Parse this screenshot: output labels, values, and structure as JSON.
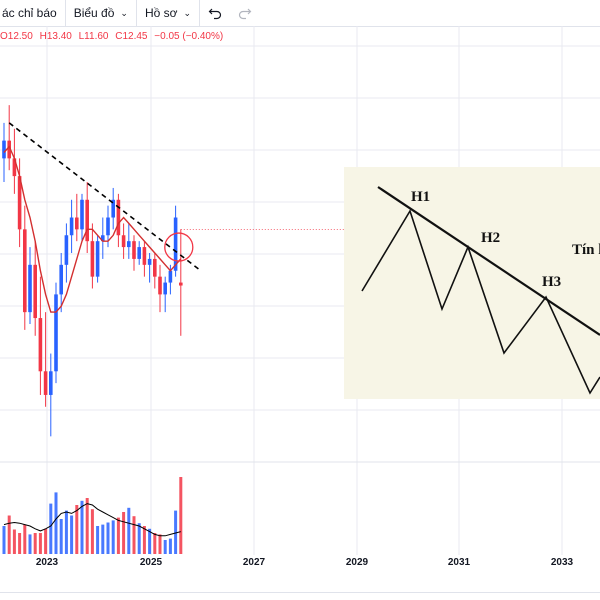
{
  "toolbar": {
    "indicators_label": "ác chỉ báo",
    "chart_type_label": "Biểu đồ",
    "profile_label": "Hồ sơ",
    "undo_icon": "undo-icon",
    "redo_icon": "redo-icon"
  },
  "ohlc": {
    "open": "O12.50",
    "high": "H13.40",
    "low": "L11.60",
    "close": "C12.45",
    "change": "−0.05 (−0.40%)"
  },
  "colors": {
    "up": "#2962ff",
    "down": "#f23645",
    "ma": "#d32f2f",
    "vol_ma": "#000000",
    "grid": "#e8eaf0",
    "callout_bg": "#f7f5e6"
  },
  "chart_data": {
    "type": "candlestick",
    "x_axis": [
      "2023",
      "2025",
      "2027",
      "2029",
      "2031",
      "2033"
    ],
    "price_range": [
      9.5,
      16.5
    ],
    "candles": [
      {
        "o": 14.6,
        "h": 15.2,
        "l": 14.2,
        "c": 14.9
      },
      {
        "o": 14.9,
        "h": 15.5,
        "l": 14.4,
        "c": 14.6
      },
      {
        "o": 14.6,
        "h": 15.1,
        "l": 14.0,
        "c": 14.3
      },
      {
        "o": 14.3,
        "h": 14.6,
        "l": 13.1,
        "c": 13.4
      },
      {
        "o": 13.4,
        "h": 13.8,
        "l": 11.7,
        "c": 12.0
      },
      {
        "o": 12.0,
        "h": 13.1,
        "l": 11.8,
        "c": 12.8
      },
      {
        "o": 12.8,
        "h": 13.2,
        "l": 11.6,
        "c": 11.9
      },
      {
        "o": 11.9,
        "h": 12.6,
        "l": 10.6,
        "c": 11.0
      },
      {
        "o": 11.0,
        "h": 12.0,
        "l": 10.4,
        "c": 10.6
      },
      {
        "o": 10.6,
        "h": 11.3,
        "l": 9.9,
        "c": 11.0
      },
      {
        "o": 11.0,
        "h": 12.5,
        "l": 10.8,
        "c": 12.3
      },
      {
        "o": 12.3,
        "h": 13.0,
        "l": 12.0,
        "c": 12.8
      },
      {
        "o": 12.8,
        "h": 13.5,
        "l": 12.5,
        "c": 13.3
      },
      {
        "o": 13.3,
        "h": 13.9,
        "l": 13.0,
        "c": 13.6
      },
      {
        "o": 13.6,
        "h": 14.0,
        "l": 13.2,
        "c": 13.4
      },
      {
        "o": 13.4,
        "h": 14.0,
        "l": 13.2,
        "c": 13.9
      },
      {
        "o": 13.9,
        "h": 14.2,
        "l": 13.0,
        "c": 13.2
      },
      {
        "o": 13.2,
        "h": 13.5,
        "l": 12.4,
        "c": 12.6
      },
      {
        "o": 12.6,
        "h": 13.3,
        "l": 12.5,
        "c": 13.2
      },
      {
        "o": 13.2,
        "h": 13.6,
        "l": 12.9,
        "c": 13.3
      },
      {
        "o": 13.3,
        "h": 13.8,
        "l": 13.1,
        "c": 13.6
      },
      {
        "o": 13.6,
        "h": 14.1,
        "l": 13.4,
        "c": 13.9
      },
      {
        "o": 13.9,
        "h": 14.0,
        "l": 13.1,
        "c": 13.3
      },
      {
        "o": 13.3,
        "h": 13.5,
        "l": 12.9,
        "c": 13.1
      },
      {
        "o": 13.1,
        "h": 13.5,
        "l": 12.9,
        "c": 13.2
      },
      {
        "o": 13.2,
        "h": 13.3,
        "l": 12.7,
        "c": 12.9
      },
      {
        "o": 12.9,
        "h": 13.2,
        "l": 12.8,
        "c": 13.1
      },
      {
        "o": 13.1,
        "h": 13.2,
        "l": 12.6,
        "c": 12.8
      },
      {
        "o": 12.8,
        "h": 13.0,
        "l": 12.5,
        "c": 12.9
      },
      {
        "o": 12.9,
        "h": 13.0,
        "l": 12.4,
        "c": 12.6
      },
      {
        "o": 12.6,
        "h": 12.8,
        "l": 12.0,
        "c": 12.3
      },
      {
        "o": 12.3,
        "h": 12.6,
        "l": 12.0,
        "c": 12.5
      },
      {
        "o": 12.5,
        "h": 12.8,
        "l": 12.3,
        "c": 12.7
      },
      {
        "o": 12.7,
        "h": 13.8,
        "l": 12.6,
        "c": 13.6
      },
      {
        "o": 12.5,
        "h": 13.4,
        "l": 11.6,
        "c": 12.45
      }
    ],
    "ma": [
      14.7,
      14.8,
      14.6,
      14.3,
      13.9,
      13.6,
      13.2,
      12.7,
      12.3,
      12.0,
      12.0,
      12.1,
      12.3,
      12.6,
      12.9,
      13.2,
      13.4,
      13.4,
      13.3,
      13.2,
      13.2,
      13.3,
      13.5,
      13.6,
      13.5,
      13.4,
      13.3,
      13.2,
      13.1,
      13.0,
      12.9,
      12.8,
      12.7,
      12.8,
      12.9
    ],
    "volume": [
      40,
      55,
      35,
      30,
      42,
      28,
      30,
      30,
      36,
      72,
      88,
      50,
      62,
      55,
      70,
      76,
      80,
      64,
      40,
      42,
      45,
      48,
      52,
      60,
      66,
      54,
      44,
      40,
      36,
      30,
      28,
      20,
      22,
      62,
      110
    ],
    "volume_ma": [
      42,
      44,
      45,
      44,
      42,
      40,
      36,
      33,
      36,
      40,
      50,
      58,
      60,
      58,
      62,
      68,
      72,
      70,
      64,
      60,
      56,
      52,
      48,
      46,
      44,
      42,
      40,
      36,
      32,
      28,
      26,
      26,
      28,
      30,
      32
    ],
    "trendline": {
      "start_price": 15.2,
      "end_price": 12.7
    },
    "resistance_level": 13.4
  },
  "callout": {
    "labels": [
      "H1",
      "H2",
      "H3",
      "Tín h"
    ]
  },
  "x_labels": [
    "2023",
    "2025",
    "2027",
    "2029",
    "2031",
    "2033"
  ]
}
